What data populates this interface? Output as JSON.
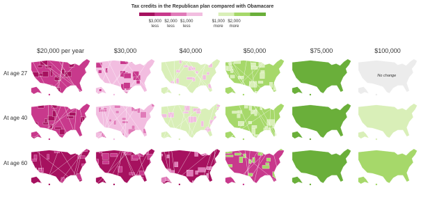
{
  "legend": {
    "title": "Tax credits in the Republican plan compared with Obamacare",
    "colors": [
      "#a6115f",
      "#c8398c",
      "#e07ab8",
      "#f2bde0",
      "#ffffff",
      "#d9efb8",
      "#a6d86a",
      "#6aaf3a"
    ],
    "ticks": [
      {
        "amount": "$3,000",
        "direction": "less"
      },
      {
        "amount": "$2,000",
        "direction": "less"
      },
      {
        "amount": "$1,000",
        "direction": "less"
      },
      {
        "amount": "$1,000",
        "direction": "more"
      },
      {
        "amount": "$2,000",
        "direction": "more"
      }
    ]
  },
  "columns": [
    "$20,000 per year",
    "$30,000",
    "$40,000",
    "$50,000",
    "$75,000",
    "$100,000"
  ],
  "rows": [
    "At age 27",
    "At age 40",
    "At age 60"
  ],
  "annotation": "No change",
  "cells": [
    [
      {
        "fill": "#c8398c",
        "accent": "#a6115f"
      },
      {
        "fill": "#f2bde0",
        "accent": "#c8398c"
      },
      {
        "fill": "#d9efb8",
        "accent": "#f2bde0"
      },
      {
        "fill": "#a6d86a",
        "accent": "#d9efb8"
      },
      {
        "fill": "#6aaf3a"
      },
      {
        "fill": "#ececec"
      }
    ],
    [
      {
        "fill": "#c8398c",
        "accent": "#a6115f"
      },
      {
        "fill": "#f2bde0",
        "accent": "#e07ab8"
      },
      {
        "fill": "#d9efb8",
        "accent": "#f2bde0"
      },
      {
        "fill": "#a6d86a",
        "accent": "#d9efb8"
      },
      {
        "fill": "#6aaf3a"
      },
      {
        "fill": "#d9efb8"
      }
    ],
    [
      {
        "fill": "#a6115f",
        "accent": "#c8398c"
      },
      {
        "fill": "#a6115f",
        "accent": "#c8398c"
      },
      {
        "fill": "#a6115f",
        "accent": "#e07ab8"
      },
      {
        "fill": "#c8398c",
        "accent": "#a6d86a"
      },
      {
        "fill": "#6aaf3a"
      },
      {
        "fill": "#a6d86a"
      }
    ]
  ]
}
